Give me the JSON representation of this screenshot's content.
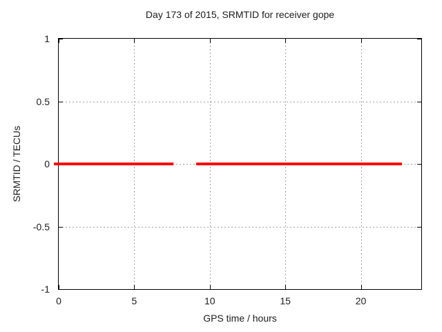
{
  "chart_data": {
    "type": "line",
    "title": "Day 173 of 2015, SRMTID for receiver gope",
    "xlabel": "GPS time / hours",
    "ylabel": "SRMTID / TECUs",
    "xlim": [
      0,
      24
    ],
    "ylim": [
      -1,
      1
    ],
    "xticks": [
      0,
      5,
      10,
      15,
      20
    ],
    "xtick_labels": [
      "0",
      "5",
      "10",
      "15",
      "20"
    ],
    "yticks": [
      -1,
      -0.5,
      0,
      0.5,
      1
    ],
    "ytick_labels": [
      "-1",
      "-0.5",
      "0",
      "0.5",
      "1"
    ],
    "grid": true,
    "legend_position": "none",
    "series": [
      {
        "name": "SRMTID",
        "color": "#ff0000",
        "linewidth": 4,
        "segments": [
          {
            "x": [
              0,
              7.6
            ],
            "y": [
              0,
              0
            ]
          },
          {
            "x": [
              9.1,
              22.7
            ],
            "y": [
              0,
              0
            ]
          }
        ]
      }
    ],
    "colors": {
      "background": "#ffffff",
      "border": "#000000",
      "grid": "#a0a0a0",
      "text": "#1c1c1c"
    }
  }
}
